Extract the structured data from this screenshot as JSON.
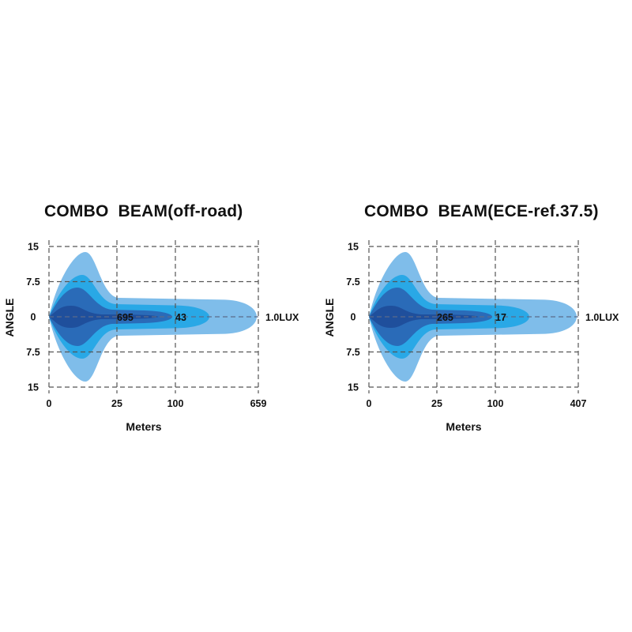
{
  "chart_data": [
    {
      "type": "area",
      "title": "COMBO  BEAM(off-road)",
      "xlabel": "Meters",
      "ylabel": "ANGLE",
      "x_ticks": [
        "0",
        "25",
        "100",
        "659"
      ],
      "y_ticks": [
        "15",
        "7.5",
        "0",
        "7.5",
        "15"
      ],
      "ylim": [
        -15,
        15
      ],
      "grid": true,
      "annotations": [
        {
          "text": "695",
          "x": "25"
        },
        {
          "text": "43",
          "x": "100"
        },
        {
          "text": "1.0LUX",
          "x": "659"
        }
      ],
      "colors": [
        "#7fbdea",
        "#29a8e6",
        "#2a6bb8",
        "#1f4f9c"
      ]
    },
    {
      "type": "area",
      "title": "COMBO  BEAM(ECE-ref.37.5)",
      "xlabel": "Meters",
      "ylabel": "ANGLE",
      "x_ticks": [
        "0",
        "25",
        "100",
        "407"
      ],
      "y_ticks": [
        "15",
        "7.5",
        "0",
        "7.5",
        "15"
      ],
      "ylim": [
        -15,
        15
      ],
      "grid": true,
      "annotations": [
        {
          "text": "265",
          "x": "25"
        },
        {
          "text": "17",
          "x": "100"
        },
        {
          "text": "1.0LUX",
          "x": "407"
        }
      ],
      "colors": [
        "#7fbdea",
        "#29a8e6",
        "#2a6bb8",
        "#1f4f9c"
      ]
    }
  ]
}
